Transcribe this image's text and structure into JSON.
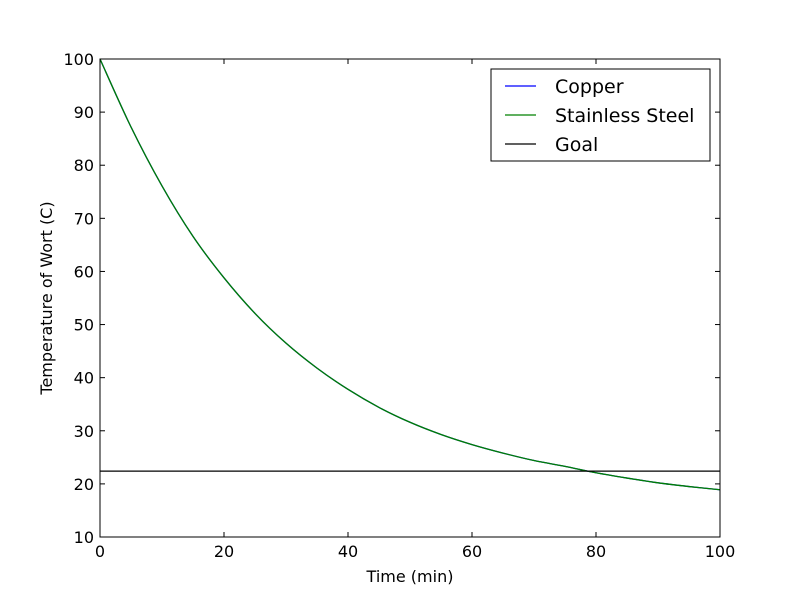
{
  "chart_data": {
    "type": "line",
    "title": "",
    "xlabel": "Time (min)",
    "ylabel": "Temperature of Wort (C)",
    "xlim": [
      0,
      100
    ],
    "ylim": [
      10,
      100
    ],
    "xticks": [
      0,
      20,
      40,
      60,
      80,
      100
    ],
    "yticks": [
      10,
      20,
      30,
      40,
      50,
      60,
      70,
      80,
      90,
      100
    ],
    "grid": false,
    "legend_position": "top-right",
    "series": [
      {
        "name": "Copper",
        "color": "#0000ff",
        "x": [
          0,
          5,
          10,
          15,
          20,
          25,
          30,
          35,
          40,
          45,
          50,
          55,
          60,
          65,
          70,
          75,
          80,
          85,
          90,
          95,
          100
        ],
        "y": [
          100,
          87.2,
          76.1,
          66.6,
          58.8,
          52.1,
          46.5,
          41.8,
          37.8,
          34.4,
          31.6,
          29.3,
          27.4,
          25.8,
          24.4,
          23.3,
          22.1,
          21.1,
          20.2,
          19.5,
          18.9
        ]
      },
      {
        "name": "Stainless Steel",
        "color": "#008000",
        "x": [
          0,
          5,
          10,
          15,
          20,
          25,
          30,
          35,
          40,
          45,
          50,
          55,
          60,
          65,
          70,
          75,
          80,
          85,
          90,
          95,
          100
        ],
        "y": [
          100,
          87.2,
          76.1,
          66.6,
          58.8,
          52.1,
          46.5,
          41.8,
          37.8,
          34.4,
          31.6,
          29.3,
          27.4,
          25.8,
          24.4,
          23.3,
          22.1,
          21.1,
          20.2,
          19.5,
          18.9
        ]
      },
      {
        "name": "Goal",
        "color": "#000000",
        "x": [
          0,
          100
        ],
        "y": [
          22.4,
          22.4
        ]
      }
    ]
  }
}
